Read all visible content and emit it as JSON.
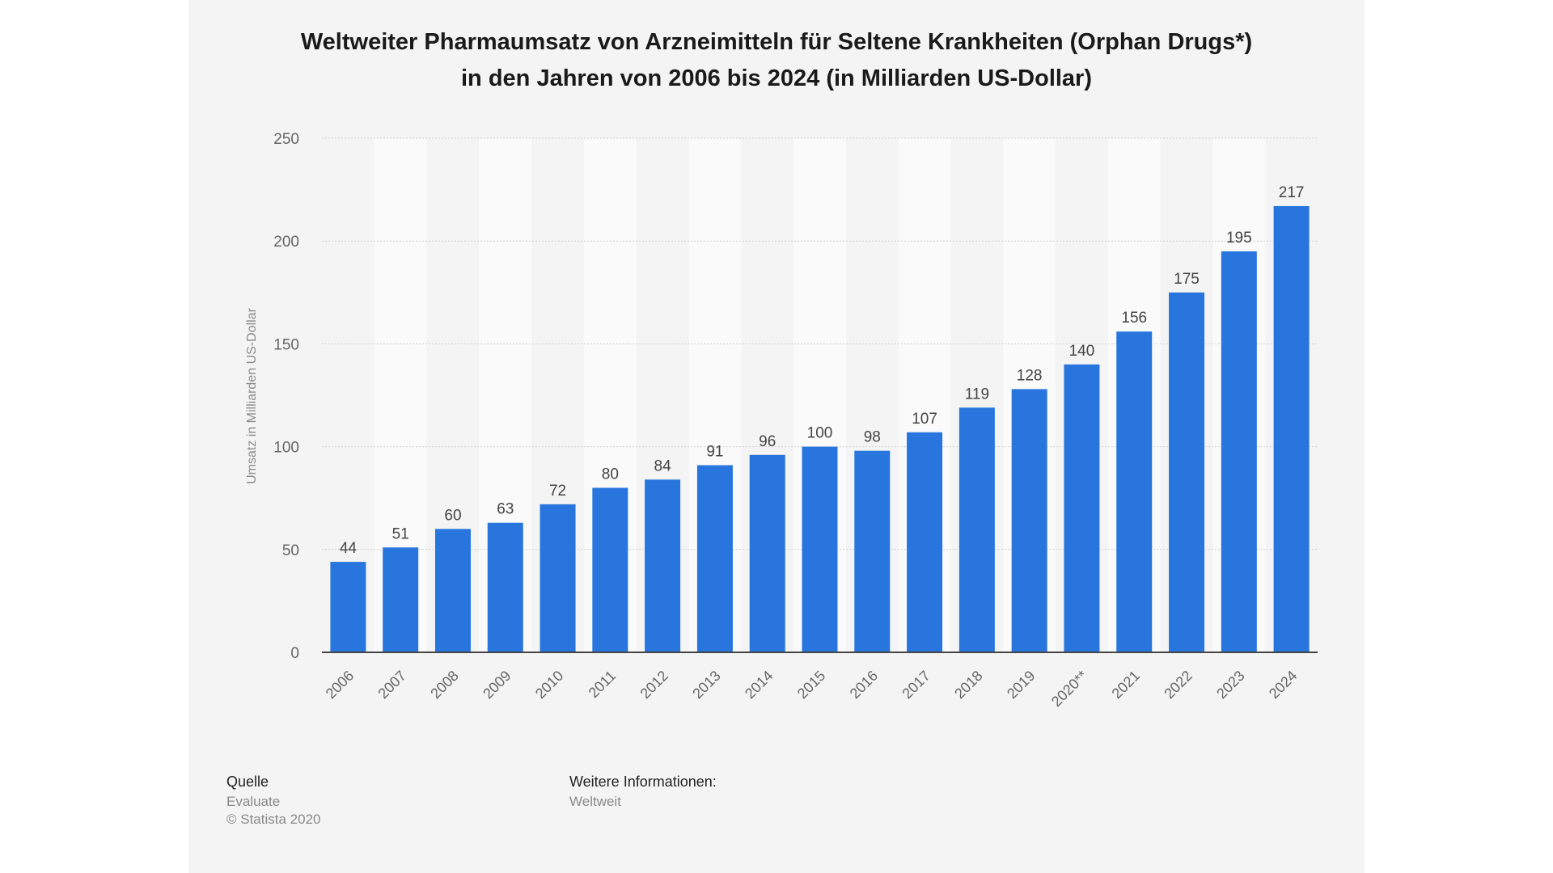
{
  "chart_data": {
    "type": "bar",
    "title_line1": "Weltweiter Pharmaumsatz von Arzneimitteln für Seltene Krankheiten (Orphan Drugs*)",
    "title_line2": "in den Jahren von 2006 bis 2024 (in Milliarden US-Dollar)",
    "xlabel": "",
    "ylabel": "Umsatz in Milliarden US-Dollar",
    "ylim": [
      0,
      250
    ],
    "yticks": [
      "0",
      "50",
      "100",
      "150",
      "200",
      "250"
    ],
    "grid": true,
    "categories": [
      "2006",
      "2007",
      "2008",
      "2009",
      "2010",
      "2011",
      "2012",
      "2013",
      "2014",
      "2015",
      "2016",
      "2017",
      "2018",
      "2019",
      "2020**",
      "2021",
      "2022",
      "2023",
      "2024"
    ],
    "values": [
      44,
      51,
      60,
      63,
      72,
      80,
      84,
      91,
      96,
      100,
      98,
      107,
      119,
      128,
      140,
      156,
      175,
      195,
      217
    ],
    "bar_color": "#2876dd"
  },
  "footer": {
    "source_label": "Quelle",
    "source": "Evaluate",
    "copyright": "© Statista 2020",
    "info_label": "Weitere Informationen:",
    "info": "Weltweit"
  }
}
